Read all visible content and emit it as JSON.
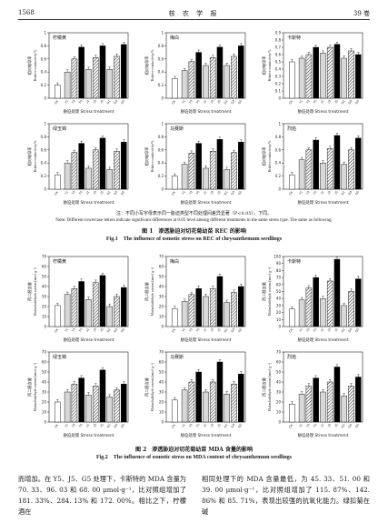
{
  "header": {
    "page": "1568",
    "journal": "核 农 学 报",
    "volume": "39 卷"
  },
  "panel_names": [
    "柠檬黄",
    "梅白",
    "卡斯特",
    "绿玉锦",
    "马赛斯",
    "烈焰"
  ],
  "tick_labels": [
    "CK",
    "Y1",
    "Y3",
    "Y5",
    "J1",
    "J3",
    "J5",
    "G1",
    "G3",
    "G5"
  ],
  "fig1": {
    "ylabel_zh": "相对电导率",
    "ylabel_en": "Relative conductivity/%",
    "x_title_zh": "胁迫处理",
    "x_title_en": "Stress treatment",
    "caption_zh": "图 1　渗透胁迫对切花菊幼苗 REC 的影响",
    "caption_en": "Fig.1　The influence of osmotic stress on REC of chrysanthemum seedlings"
  },
  "note": {
    "zh": "注：不同小写字母表示同一胁迫类型不同处理间差异显著（P<0.05）。下同。",
    "en": "Note: Different lowercase letters indicate significant differences at 0.05 level among different treatments in the same stress type. The same as following."
  },
  "fig2": {
    "ylabel_zh": "丙二醛含量",
    "ylabel_en": "Malondialdehyde content/(nmol·g⁻¹)",
    "x_title_zh": "胁迫处理",
    "x_title_en": "Stress treatment",
    "caption_zh": "图 2　渗透胁迫对切花菊幼苗 MDA 含量的影响",
    "caption_en": "Fig.2　The influence of osmotic stress on MDA content of chrysanthemum seedlings"
  },
  "body": {
    "left": "而增加。在 Y5、J5、G5 处理下，卡斯特的 MDA 含量为 70. 33、96. 03 和 68. 00 μmol·g⁻¹，比对照组增加了 181. 33%、284. 13% 和 172. 00%。相比之下，柠檬酒在",
    "right": "相同处理下的 MDA 含量最低，为 45. 33、51. 00 和 39. 00 μmol·g⁻¹，比对照组增加了 115. 87%、142. 86% 和 85. 71%，表现出较强的抗氧化能力。绿扣菊在碱"
  },
  "chart_data": [
    {
      "type": "bar",
      "figure": "Fig.1",
      "panel": "柠檬黄",
      "categories": [
        "CK",
        "Y1",
        "Y3",
        "Y5",
        "J1",
        "J3",
        "J5",
        "G1",
        "G3",
        "G5"
      ],
      "values": [
        0.2,
        0.4,
        0.6,
        0.78,
        0.44,
        0.62,
        0.8,
        0.44,
        0.64,
        0.82
      ],
      "ylim": [
        0,
        1.0
      ],
      "yticks": [
        0,
        0.2,
        0.4,
        0.6,
        0.8,
        1.0
      ]
    },
    {
      "type": "bar",
      "figure": "Fig.1",
      "panel": "梅白",
      "categories": [
        "CK",
        "Y1",
        "Y3",
        "Y5",
        "J1",
        "J3",
        "J5",
        "G1",
        "G3",
        "G5"
      ],
      "values": [
        0.3,
        0.42,
        0.56,
        0.7,
        0.5,
        0.62,
        0.78,
        0.5,
        0.64,
        0.8
      ],
      "ylim": [
        0,
        1.0
      ],
      "yticks": [
        0,
        0.2,
        0.4,
        0.6,
        0.8,
        1.0
      ]
    },
    {
      "type": "bar",
      "figure": "Fig.1",
      "panel": "卡斯特",
      "categories": [
        "CK",
        "Y1",
        "Y3",
        "Y5",
        "J1",
        "J3",
        "J5",
        "G1",
        "G3",
        "G5"
      ],
      "values": [
        0.5,
        0.55,
        0.6,
        0.7,
        0.62,
        0.7,
        0.74,
        0.55,
        0.65,
        0.6
      ],
      "ylim": [
        0,
        0.9
      ],
      "yticks": [
        0,
        0.1,
        0.2,
        0.3,
        0.4,
        0.5,
        0.6,
        0.7,
        0.8,
        0.9
      ]
    },
    {
      "type": "bar",
      "figure": "Fig.1",
      "panel": "绿玉锦",
      "categories": [
        "CK",
        "Y1",
        "Y3",
        "Y5",
        "J1",
        "J3",
        "J5",
        "G1",
        "G3",
        "G5"
      ],
      "values": [
        0.22,
        0.4,
        0.56,
        0.7,
        0.32,
        0.6,
        0.78,
        0.3,
        0.58,
        0.72
      ],
      "ylim": [
        0,
        1.0
      ],
      "yticks": [
        0,
        0.2,
        0.4,
        0.6,
        0.8,
        1.0
      ]
    },
    {
      "type": "bar",
      "figure": "Fig.1",
      "panel": "马赛斯",
      "categories": [
        "CK",
        "Y1",
        "Y3",
        "Y5",
        "J1",
        "J3",
        "J5",
        "G1",
        "G3",
        "G5"
      ],
      "values": [
        0.2,
        0.38,
        0.55,
        0.7,
        0.32,
        0.58,
        0.76,
        0.3,
        0.56,
        0.72
      ],
      "ylim": [
        0,
        1.0
      ],
      "yticks": [
        0,
        0.2,
        0.4,
        0.6,
        0.8,
        1.0
      ]
    },
    {
      "type": "bar",
      "figure": "Fig.1",
      "panel": "烈焰",
      "categories": [
        "CK",
        "Y1",
        "Y3",
        "Y5",
        "J1",
        "J3",
        "J5",
        "G1",
        "G3",
        "G5"
      ],
      "values": [
        0.22,
        0.45,
        0.6,
        0.75,
        0.4,
        0.62,
        0.82,
        0.38,
        0.6,
        0.78
      ],
      "ylim": [
        0,
        1.0
      ],
      "yticks": [
        0,
        0.2,
        0.4,
        0.6,
        0.8,
        1.0
      ]
    },
    {
      "type": "bar",
      "figure": "Fig.2",
      "panel": "柠檬黄",
      "categories": [
        "CK",
        "Y1",
        "Y3",
        "Y5",
        "J1",
        "J3",
        "J5",
        "G1",
        "G3",
        "G5"
      ],
      "values": [
        21,
        32,
        38,
        45,
        27,
        44,
        51,
        20,
        30,
        39
      ],
      "ylim": [
        0,
        70
      ],
      "yticks": [
        0,
        10,
        20,
        30,
        40,
        50,
        60,
        70
      ]
    },
    {
      "type": "bar",
      "figure": "Fig.2",
      "panel": "梅白",
      "categories": [
        "CK",
        "Y1",
        "Y3",
        "Y5",
        "J1",
        "J3",
        "J5",
        "G1",
        "G3",
        "G5"
      ],
      "values": [
        18,
        25,
        32,
        38,
        30,
        38,
        50,
        24,
        34,
        40
      ],
      "ylim": [
        0,
        70
      ],
      "yticks": [
        0,
        10,
        20,
        30,
        40,
        50,
        60,
        70
      ]
    },
    {
      "type": "bar",
      "figure": "Fig.2",
      "panel": "卡斯特",
      "categories": [
        "CK",
        "Y1",
        "Y3",
        "Y5",
        "J1",
        "J3",
        "J5",
        "G1",
        "G3",
        "G5"
      ],
      "values": [
        25,
        38,
        55,
        70,
        40,
        65,
        96,
        30,
        50,
        68
      ],
      "ylim": [
        0,
        100
      ],
      "yticks": [
        0,
        10,
        20,
        30,
        40,
        50,
        60,
        70,
        80,
        90,
        100
      ]
    },
    {
      "type": "bar",
      "figure": "Fig.2",
      "panel": "绿玉锦",
      "categories": [
        "CK",
        "Y1",
        "Y3",
        "Y5",
        "J1",
        "J3",
        "J5",
        "G1",
        "G3",
        "G5"
      ],
      "values": [
        20,
        30,
        38,
        44,
        27,
        36,
        52,
        25,
        32,
        38
      ],
      "ylim": [
        0,
        70
      ],
      "yticks": [
        0,
        10,
        20,
        30,
        40,
        50,
        60,
        70
      ]
    },
    {
      "type": "bar",
      "figure": "Fig.2",
      "panel": "马赛斯",
      "categories": [
        "CK",
        "Y1",
        "Y3",
        "Y5",
        "J1",
        "J3",
        "J5",
        "G1",
        "G3",
        "G5"
      ],
      "values": [
        22,
        32,
        40,
        50,
        30,
        40,
        60,
        28,
        38,
        48
      ],
      "ylim": [
        0,
        70
      ],
      "yticks": [
        0,
        10,
        20,
        30,
        40,
        50,
        60,
        70
      ]
    },
    {
      "type": "bar",
      "figure": "Fig.2",
      "panel": "烈焰",
      "categories": [
        "CK",
        "Y1",
        "Y3",
        "Y5",
        "J1",
        "J3",
        "J5",
        "G1",
        "G3",
        "G5"
      ],
      "values": [
        18,
        28,
        36,
        44,
        30,
        40,
        55,
        26,
        36,
        45
      ],
      "ylim": [
        0,
        70
      ],
      "yticks": [
        0,
        10,
        20,
        30,
        40,
        50,
        60,
        70
      ]
    }
  ]
}
